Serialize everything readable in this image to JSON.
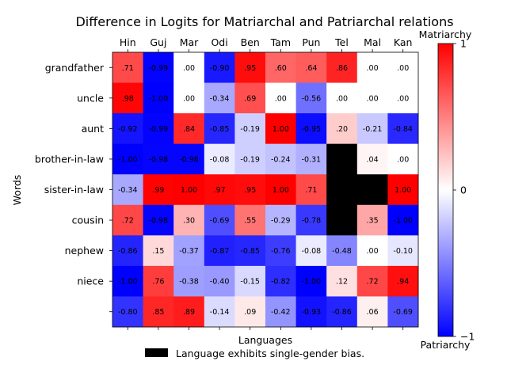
{
  "chart_data": {
    "type": "heatmap",
    "title": "Difference in Logits for Matriarchal and Patriarchal relations",
    "xlabel": "Languages",
    "ylabel": "Words",
    "languages": [
      "Hin",
      "Guj",
      "Mar",
      "Odi",
      "Ben",
      "Tam",
      "Pun",
      "Tel",
      "Mal",
      "Kan"
    ],
    "words": [
      "grandfather",
      "uncle",
      "aunt",
      "brother-in-law",
      "sister-in-law",
      "cousin",
      "nephew",
      "niece",
      ""
    ],
    "values": [
      [
        0.71,
        -0.99,
        0.0,
        -0.9,
        0.95,
        0.6,
        0.64,
        0.86,
        0.0,
        0.0
      ],
      [
        0.98,
        -1.0,
        0.0,
        -0.34,
        0.69,
        0.0,
        -0.56,
        0.0,
        0.0,
        0.0
      ],
      [
        -0.92,
        -0.99,
        0.84,
        -0.85,
        -0.19,
        1.0,
        -0.95,
        0.2,
        -0.21,
        -0.84
      ],
      [
        -1.0,
        -0.98,
        -0.98,
        -0.08,
        -0.19,
        -0.24,
        -0.31,
        null,
        0.04,
        0.0
      ],
      [
        -0.34,
        0.99,
        1.0,
        0.97,
        0.95,
        1.0,
        0.71,
        null,
        null,
        1.0
      ],
      [
        0.72,
        -0.98,
        0.3,
        -0.69,
        0.55,
        -0.29,
        -0.78,
        null,
        0.35,
        -1.0
      ],
      [
        -0.86,
        0.15,
        -0.37,
        -0.87,
        -0.85,
        -0.76,
        -0.08,
        -0.48,
        0.0,
        -0.1
      ],
      [
        -1.0,
        0.76,
        -0.38,
        -0.4,
        -0.15,
        -0.82,
        -1.0,
        0.12,
        0.72,
        0.94
      ],
      [
        -0.8,
        0.85,
        0.89,
        -0.14,
        0.09,
        -0.42,
        -0.93,
        -0.86,
        0.06,
        -0.69
      ]
    ],
    "labels": [
      [
        ".71",
        "-0.99",
        ".00",
        "-0.90",
        ".95",
        ".60",
        ".64",
        ".86",
        ".00",
        ".00"
      ],
      [
        ".98",
        "-1.00",
        ".00",
        "-0.34",
        ".69",
        ".00",
        "-0.56",
        ".00",
        ".00",
        ".00"
      ],
      [
        "-0.92",
        "-0.99",
        ".84",
        "-0.85",
        "-0.19",
        "1.00",
        "-0.95",
        ".20",
        "-0.21",
        "-0.84"
      ],
      [
        "-1.00",
        "-0.98",
        "-0.98",
        "-0.08",
        "-0.19",
        "-0.24",
        "-0.31",
        "",
        ".04",
        ".00"
      ],
      [
        "-0.34",
        ".99",
        "1.00",
        ".97",
        ".95",
        "1.00",
        ".71",
        "",
        "",
        "1.00"
      ],
      [
        ".72",
        "-0.98",
        ".30",
        "-0.69",
        ".55",
        "-0.29",
        "-0.78",
        "",
        ".35",
        "-1.00"
      ],
      [
        "-0.86",
        ".15",
        "-0.37",
        "-0.87",
        "-0.85",
        "-0.76",
        "-0.08",
        "-0.48",
        ".00",
        "-0.10"
      ],
      [
        "-1.00",
        ".76",
        "-0.38",
        "-0.40",
        "-0.15",
        "-0.82",
        "-1.00",
        ".12",
        ".72",
        ".94"
      ],
      [
        "-0.80",
        ".85",
        ".89",
        "-0.14",
        ".09",
        "-0.42",
        "-0.93",
        "-0.86",
        ".06",
        "-0.69"
      ]
    ],
    "missing_color": "#000000",
    "colormap": "bwr",
    "color_range": [
      -1,
      1
    ],
    "colorbar": {
      "ticks": [
        -1,
        0,
        1
      ],
      "tick_labels": [
        "−1",
        "0",
        "1"
      ],
      "top_label": "Matriarchy",
      "bottom_label": "Patriarchy"
    },
    "legend": {
      "label": "Language exhibits single-gender bias.",
      "color": "#000000",
      "placement": "bottom-center"
    }
  }
}
